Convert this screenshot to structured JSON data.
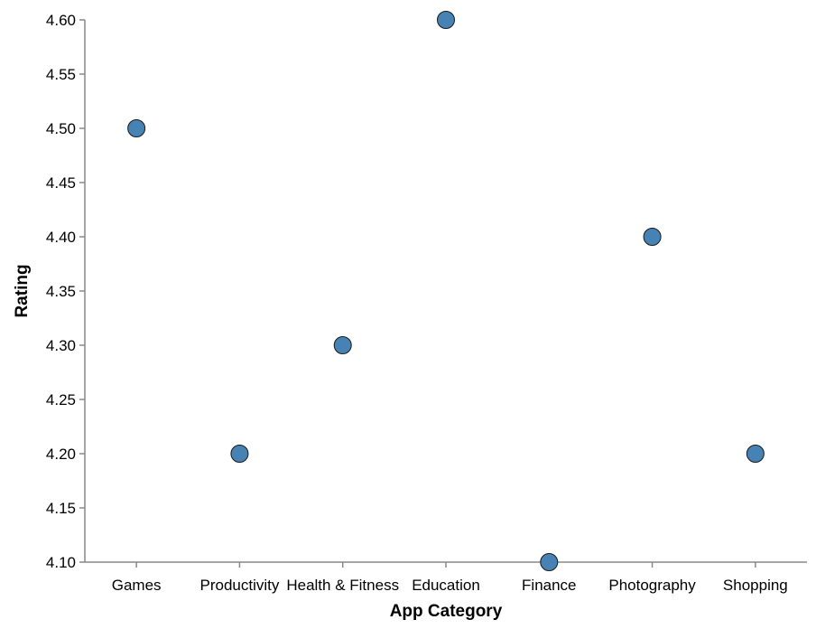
{
  "chart_data": {
    "type": "scatter",
    "xlabel": "App Category",
    "ylabel": "Rating",
    "categories": [
      "Games",
      "Productivity",
      "Health & Fitness",
      "Education",
      "Finance",
      "Photography",
      "Shopping"
    ],
    "values": [
      4.5,
      4.2,
      4.3,
      4.6,
      4.1,
      4.4,
      4.2
    ],
    "ylim": [
      4.1,
      4.6
    ],
    "yticks": [
      "4.10",
      "4.15",
      "4.20",
      "4.25",
      "4.30",
      "4.35",
      "4.40",
      "4.45",
      "4.50",
      "4.55",
      "4.60"
    ],
    "grid": false,
    "legend": "none",
    "point_color": "#4682b4"
  }
}
